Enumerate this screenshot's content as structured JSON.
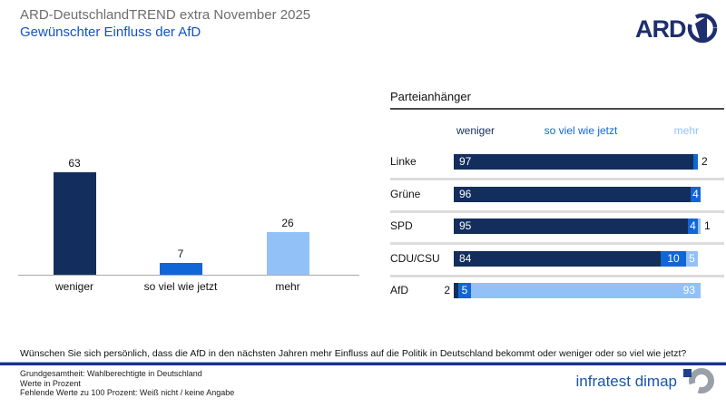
{
  "header": {
    "title": "ARD-DeutschlandTREND extra November 2025",
    "subtitle": "Gewünschter Einfluss der AfD"
  },
  "ard_logo": "ARD",
  "chart_data": [
    {
      "type": "bar",
      "title": "Gewünschter Einfluss der AfD",
      "categories": [
        "weniger",
        "so viel wie jetzt",
        "mehr"
      ],
      "values": [
        63,
        7,
        26
      ],
      "colors": [
        "#132e5c",
        "#1066d6",
        "#92c1f8"
      ],
      "ylim": [
        0,
        70
      ],
      "unit": "Prozent",
      "value_labels": true,
      "grid": false
    },
    {
      "type": "bar",
      "orientation": "horizontal-stacked",
      "title": "Parteianhänger",
      "categories": [
        "Linke",
        "Grüne",
        "SPD",
        "CDU/CSU",
        "AfD"
      ],
      "series": [
        {
          "name": "weniger",
          "color": "#132e5c",
          "values": [
            97,
            96,
            95,
            84,
            2
          ]
        },
        {
          "name": "so viel wie jetzt",
          "color": "#1066d6",
          "values": [
            2,
            4,
            4,
            10,
            5
          ]
        },
        {
          "name": "mehr",
          "color": "#92c1f8",
          "values": [
            0,
            0,
            1,
            5,
            93
          ]
        }
      ],
      "xlim": [
        0,
        100
      ],
      "legend_position": "top"
    }
  ],
  "question": "Wünschen Sie sich persönlich, dass die AfD in den nächsten Jahren mehr Einfluss auf die Politik in Deutschland bekommt oder weniger oder so viel wie jetzt?",
  "footnotes": [
    "Grundgesamtheit: Wahlberechtigte in Deutschland",
    "Werte in Prozent",
    "Fehlende Werte zu 100 Prozent: Weiß nicht / keine Angabe"
  ],
  "branding": "infratest dimap",
  "colors": {
    "navy": "#132e5c",
    "blue": "#1066d6",
    "light_blue": "#92c1f8",
    "title_gray": "#6d6d6d",
    "subtitle_blue": "#1253c4",
    "ard_navy": "#1e2f6d",
    "divider_navy": "#1a357e",
    "infratest_blue": "#1b55a6",
    "infratest_gray": "#9aa0a8"
  }
}
